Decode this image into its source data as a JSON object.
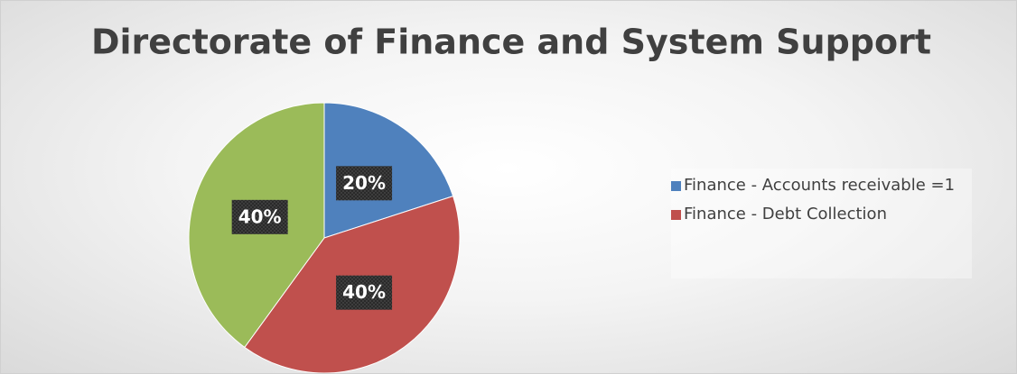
{
  "chart_data": {
    "type": "pie",
    "title": "Directorate of Finance and System Support",
    "categories": [
      "Finance - Accounts receivable =1",
      "Finance - Debt Collection",
      null
    ],
    "values": [
      20,
      40,
      40
    ],
    "value_labels": [
      "20%",
      "40%",
      "40%"
    ],
    "colors": [
      "#4f81bd",
      "#c0504d",
      "#9bbb59"
    ],
    "legend": "right"
  }
}
